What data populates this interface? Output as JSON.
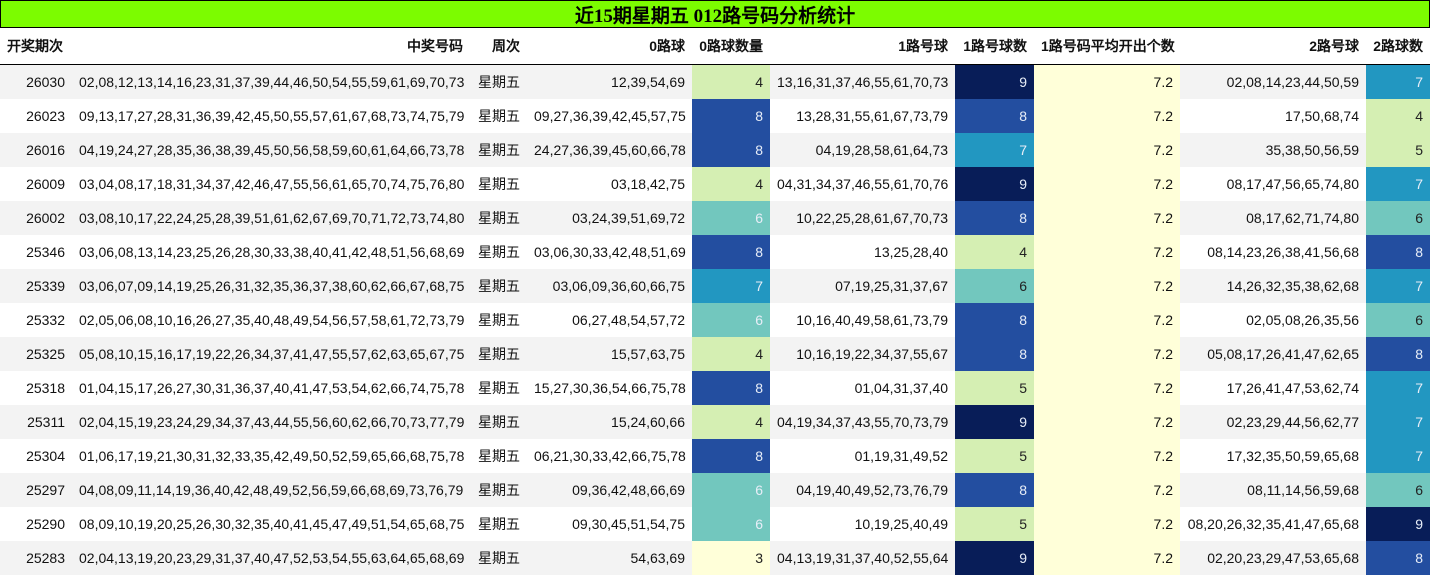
{
  "title": "近15期星期五 012路号码分析统计",
  "headers": {
    "issue": "开奖期次",
    "numbers": "中奖号码",
    "week": "周次",
    "road0": "0路球",
    "road0_count": "0路球数量",
    "road1": "1路号球",
    "road1_count": "1路号球数",
    "road1_avg": "1路号码平均开出个数",
    "road2": "2路号球",
    "road2_count": "2路球数"
  },
  "heat_colors": {
    "3": "#ffffd9",
    "4": "#d5efb3",
    "5": "#d5efb3",
    "6": "#72c7be",
    "7": "#2297c1",
    "8": "#234ea0",
    "9": "#081d58"
  },
  "rows": [
    {
      "issue": "26030",
      "numbers": "02,08,12,13,14,16,23,31,37,39,44,46,50,54,55,59,61,69,70,73",
      "week": "星期五",
      "road0": "12,39,54,69",
      "road0_count": "4",
      "road1": "13,16,31,37,46,55,61,70,73",
      "road1_count": "9",
      "road1_avg": "7.2",
      "road2": "02,08,14,23,44,50,59",
      "road2_count": "7"
    },
    {
      "issue": "26023",
      "numbers": "09,13,17,27,28,31,36,39,42,45,50,55,57,61,67,68,73,74,75,79",
      "week": "星期五",
      "road0": "09,27,36,39,42,45,57,75",
      "road0_count": "8",
      "road1": "13,28,31,55,61,67,73,79",
      "road1_count": "8",
      "road1_avg": "7.2",
      "road2": "17,50,68,74",
      "road2_count": "4"
    },
    {
      "issue": "26016",
      "numbers": "04,19,24,27,28,35,36,38,39,45,50,56,58,59,60,61,64,66,73,78",
      "week": "星期五",
      "road0": "24,27,36,39,45,60,66,78",
      "road0_count": "8",
      "road1": "04,19,28,58,61,64,73",
      "road1_count": "7",
      "road1_avg": "7.2",
      "road2": "35,38,50,56,59",
      "road2_count": "5"
    },
    {
      "issue": "26009",
      "numbers": "03,04,08,17,18,31,34,37,42,46,47,55,56,61,65,70,74,75,76,80",
      "week": "星期五",
      "road0": "03,18,42,75",
      "road0_count": "4",
      "road1": "04,31,34,37,46,55,61,70,76",
      "road1_count": "9",
      "road1_avg": "7.2",
      "road2": "08,17,47,56,65,74,80",
      "road2_count": "7"
    },
    {
      "issue": "26002",
      "numbers": "03,08,10,17,22,24,25,28,39,51,61,62,67,69,70,71,72,73,74,80",
      "week": "星期五",
      "road0": "03,24,39,51,69,72",
      "road0_count": "6",
      "road1": "10,22,25,28,61,67,70,73",
      "road1_count": "8",
      "road1_avg": "7.2",
      "road2": "08,17,62,71,74,80",
      "road2_count": "6"
    },
    {
      "issue": "25346",
      "numbers": "03,06,08,13,14,23,25,26,28,30,33,38,40,41,42,48,51,56,68,69",
      "week": "星期五",
      "road0": "03,06,30,33,42,48,51,69",
      "road0_count": "8",
      "road1": "13,25,28,40",
      "road1_count": "4",
      "road1_avg": "7.2",
      "road2": "08,14,23,26,38,41,56,68",
      "road2_count": "8"
    },
    {
      "issue": "25339",
      "numbers": "03,06,07,09,14,19,25,26,31,32,35,36,37,38,60,62,66,67,68,75",
      "week": "星期五",
      "road0": "03,06,09,36,60,66,75",
      "road0_count": "7",
      "road1": "07,19,25,31,37,67",
      "road1_count": "6",
      "road1_avg": "7.2",
      "road2": "14,26,32,35,38,62,68",
      "road2_count": "7"
    },
    {
      "issue": "25332",
      "numbers": "02,05,06,08,10,16,26,27,35,40,48,49,54,56,57,58,61,72,73,79",
      "week": "星期五",
      "road0": "06,27,48,54,57,72",
      "road0_count": "6",
      "road1": "10,16,40,49,58,61,73,79",
      "road1_count": "8",
      "road1_avg": "7.2",
      "road2": "02,05,08,26,35,56",
      "road2_count": "6"
    },
    {
      "issue": "25325",
      "numbers": "05,08,10,15,16,17,19,22,26,34,37,41,47,55,57,62,63,65,67,75",
      "week": "星期五",
      "road0": "15,57,63,75",
      "road0_count": "4",
      "road1": "10,16,19,22,34,37,55,67",
      "road1_count": "8",
      "road1_avg": "7.2",
      "road2": "05,08,17,26,41,47,62,65",
      "road2_count": "8"
    },
    {
      "issue": "25318",
      "numbers": "01,04,15,17,26,27,30,31,36,37,40,41,47,53,54,62,66,74,75,78",
      "week": "星期五",
      "road0": "15,27,30,36,54,66,75,78",
      "road0_count": "8",
      "road1": "01,04,31,37,40",
      "road1_count": "5",
      "road1_avg": "7.2",
      "road2": "17,26,41,47,53,62,74",
      "road2_count": "7"
    },
    {
      "issue": "25311",
      "numbers": "02,04,15,19,23,24,29,34,37,43,44,55,56,60,62,66,70,73,77,79",
      "week": "星期五",
      "road0": "15,24,60,66",
      "road0_count": "4",
      "road1": "04,19,34,37,43,55,70,73,79",
      "road1_count": "9",
      "road1_avg": "7.2",
      "road2": "02,23,29,44,56,62,77",
      "road2_count": "7"
    },
    {
      "issue": "25304",
      "numbers": "01,06,17,19,21,30,31,32,33,35,42,49,50,52,59,65,66,68,75,78",
      "week": "星期五",
      "road0": "06,21,30,33,42,66,75,78",
      "road0_count": "8",
      "road1": "01,19,31,49,52",
      "road1_count": "5",
      "road1_avg": "7.2",
      "road2": "17,32,35,50,59,65,68",
      "road2_count": "7"
    },
    {
      "issue": "25297",
      "numbers": "04,08,09,11,14,19,36,40,42,48,49,52,56,59,66,68,69,73,76,79",
      "week": "星期五",
      "road0": "09,36,42,48,66,69",
      "road0_count": "6",
      "road1": "04,19,40,49,52,73,76,79",
      "road1_count": "8",
      "road1_avg": "7.2",
      "road2": "08,11,14,56,59,68",
      "road2_count": "6"
    },
    {
      "issue": "25290",
      "numbers": "08,09,10,19,20,25,26,30,32,35,40,41,45,47,49,51,54,65,68,75",
      "week": "星期五",
      "road0": "09,30,45,51,54,75",
      "road0_count": "6",
      "road1": "10,19,25,40,49",
      "road1_count": "5",
      "road1_avg": "7.2",
      "road2": "08,20,26,32,35,41,47,65,68",
      "road2_count": "9"
    },
    {
      "issue": "25283",
      "numbers": "02,04,13,19,20,23,29,31,37,40,47,52,53,54,55,63,64,65,68,69",
      "week": "星期五",
      "road0": "54,63,69",
      "road0_count": "3",
      "road1": "04,13,19,31,37,40,52,55,64",
      "road1_count": "9",
      "road1_avg": "7.2",
      "road2": "02,20,23,29,47,53,65,68",
      "road2_count": "8"
    }
  ]
}
